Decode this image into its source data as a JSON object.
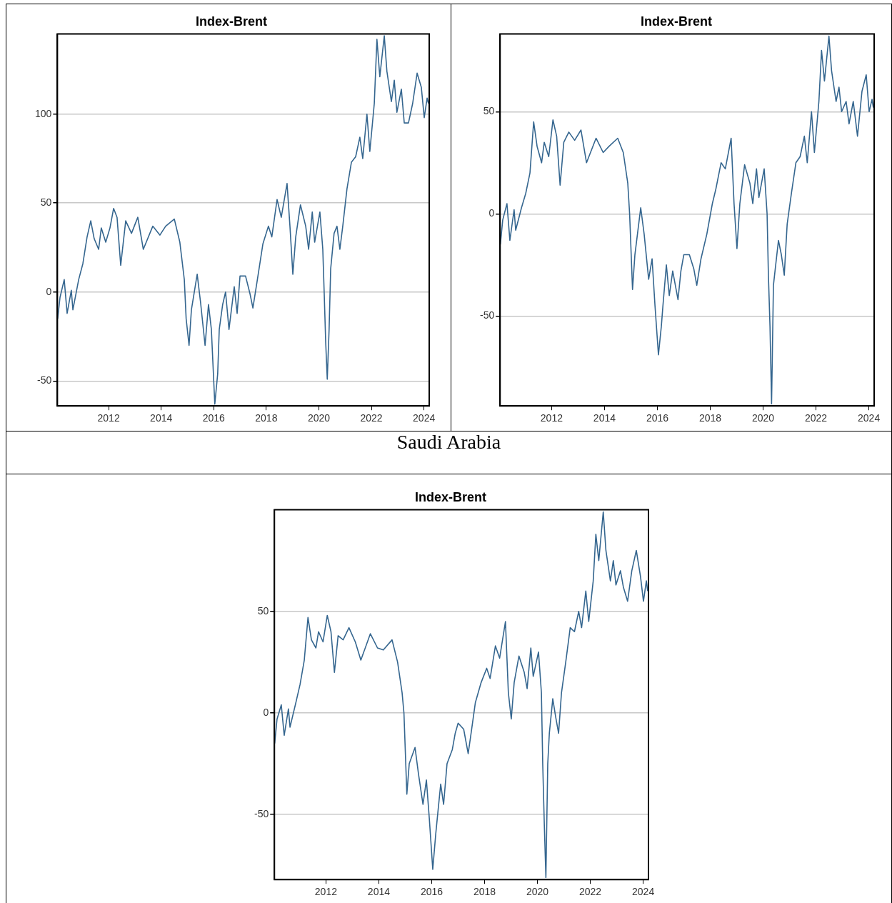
{
  "chart_data": [
    {
      "type": "line",
      "title": "Index-Brent",
      "grid": "y",
      "marker": "none",
      "legend": false,
      "xlim": [
        2010.05,
        2024.2
      ],
      "xticks": [
        2012,
        2014,
        2016,
        2018,
        2020,
        2022,
        2024
      ],
      "ylim": [
        -64,
        145
      ],
      "yticks": [
        -50,
        0,
        50,
        100
      ],
      "x": [
        2010.06,
        2010.15,
        2010.31,
        2010.42,
        2010.58,
        2010.64,
        2010.86,
        2011.02,
        2011.18,
        2011.32,
        2011.45,
        2011.62,
        2011.72,
        2011.89,
        2012.05,
        2012.19,
        2012.32,
        2012.46,
        2012.65,
        2012.87,
        2013.11,
        2013.32,
        2013.68,
        2013.95,
        2014.17,
        2014.5,
        2014.71,
        2014.88,
        2014.95,
        2015.06,
        2015.15,
        2015.37,
        2015.5,
        2015.67,
        2015.8,
        2015.91,
        2016.04,
        2016.15,
        2016.21,
        2016.34,
        2016.45,
        2016.58,
        2016.78,
        2016.89,
        2017.0,
        2017.21,
        2017.38,
        2017.49,
        2017.65,
        2017.87,
        2018.08,
        2018.21,
        2018.41,
        2018.57,
        2018.79,
        2018.9,
        2019.01,
        2019.12,
        2019.3,
        2019.5,
        2019.61,
        2019.75,
        2019.84,
        2020.04,
        2020.15,
        2020.2,
        2020.26,
        2020.32,
        2020.39,
        2020.45,
        2020.58,
        2020.69,
        2020.8,
        2020.91,
        2021.07,
        2021.24,
        2021.4,
        2021.56,
        2021.67,
        2021.83,
        2021.94,
        2022.11,
        2022.21,
        2022.32,
        2022.49,
        2022.59,
        2022.76,
        2022.87,
        2022.97,
        2023.14,
        2023.25,
        2023.41,
        2023.57,
        2023.74,
        2023.9,
        2024.01,
        2024.12,
        2024.17
      ],
      "series": [
        {
          "color": "#35668f",
          "values": [
            -15,
            -3,
            7,
            -12,
            1,
            -10,
            7,
            16,
            31,
            40,
            30,
            24,
            36,
            28,
            36,
            47,
            42,
            15,
            40,
            33,
            42,
            24,
            37,
            32,
            37,
            41,
            28,
            7,
            -15,
            -30,
            -10,
            10,
            -6,
            -30,
            -7,
            -21,
            -63,
            -46,
            -21,
            -7,
            0,
            -21,
            3,
            -12,
            9,
            9,
            -1,
            -9,
            6,
            27,
            37,
            31,
            52,
            42,
            61,
            37,
            10,
            31,
            49,
            37,
            24,
            45,
            28,
            45,
            24,
            1,
            -28,
            -49,
            -21,
            13,
            33,
            37,
            24,
            37,
            58,
            73,
            76,
            87,
            75,
            100,
            79,
            106,
            142,
            121,
            144,
            124,
            107,
            119,
            101,
            114,
            95,
            95,
            106,
            123,
            115,
            98,
            109,
            106
          ]
        }
      ]
    },
    {
      "type": "line",
      "title": "Index-Brent",
      "grid": "y",
      "marker": "none",
      "legend": false,
      "xlim": [
        2010.05,
        2024.2
      ],
      "xticks": [
        2012,
        2014,
        2016,
        2018,
        2020,
        2022,
        2024
      ],
      "ylim": [
        -94,
        88
      ],
      "yticks": [
        -50,
        0,
        50
      ],
      "x": [
        2010.06,
        2010.15,
        2010.31,
        2010.42,
        2010.58,
        2010.64,
        2010.86,
        2011.02,
        2011.18,
        2011.32,
        2011.45,
        2011.62,
        2011.72,
        2011.89,
        2012.05,
        2012.19,
        2012.32,
        2012.46,
        2012.65,
        2012.87,
        2013.11,
        2013.32,
        2013.68,
        2013.95,
        2014.17,
        2014.5,
        2014.71,
        2014.88,
        2014.95,
        2015.06,
        2015.15,
        2015.37,
        2015.5,
        2015.67,
        2015.8,
        2015.91,
        2016.04,
        2016.15,
        2016.21,
        2016.34,
        2016.45,
        2016.58,
        2016.78,
        2016.89,
        2017.0,
        2017.21,
        2017.38,
        2017.49,
        2017.65,
        2017.87,
        2018.08,
        2018.21,
        2018.41,
        2018.57,
        2018.79,
        2018.9,
        2019.01,
        2019.12,
        2019.3,
        2019.5,
        2019.61,
        2019.75,
        2019.84,
        2020.04,
        2020.15,
        2020.2,
        2020.26,
        2020.32,
        2020.39,
        2020.45,
        2020.58,
        2020.69,
        2020.8,
        2020.91,
        2021.07,
        2021.24,
        2021.4,
        2021.56,
        2021.67,
        2021.83,
        2021.94,
        2022.11,
        2022.21,
        2022.32,
        2022.49,
        2022.59,
        2022.76,
        2022.87,
        2022.97,
        2023.14,
        2023.25,
        2023.41,
        2023.57,
        2023.74,
        2023.9,
        2024.01,
        2024.12,
        2024.17
      ],
      "series": [
        {
          "color": "#35668f",
          "values": [
            -15,
            -3,
            5,
            -13,
            2,
            -8,
            3,
            10,
            20,
            45,
            33,
            25,
            35,
            28,
            46,
            38,
            14,
            35,
            40,
            36,
            41,
            25,
            37,
            30,
            33,
            37,
            30,
            15,
            0,
            -37,
            -20,
            3,
            -10,
            -32,
            -22,
            -45,
            -69,
            -55,
            -45,
            -25,
            -40,
            -28,
            -42,
            -28,
            -20,
            -20,
            -27,
            -35,
            -22,
            -10,
            5,
            12,
            25,
            22,
            37,
            5,
            -17,
            5,
            24,
            15,
            5,
            22,
            8,
            22,
            0,
            -30,
            -55,
            -93,
            -35,
            -28,
            -13,
            -20,
            -30,
            -5,
            10,
            25,
            28,
            38,
            25,
            50,
            30,
            55,
            80,
            65,
            87,
            70,
            55,
            62,
            50,
            55,
            44,
            55,
            38,
            60,
            68,
            50,
            56,
            52
          ]
        }
      ]
    },
    {
      "type": "line",
      "title": "Index-Brent",
      "annotations": [
        "Saudi Arabia"
      ],
      "grid": "y",
      "marker": "none",
      "legend": false,
      "xlim": [
        2010.05,
        2024.2
      ],
      "xticks": [
        2012,
        2014,
        2016,
        2018,
        2020,
        2022,
        2024
      ],
      "ylim": [
        -82,
        100
      ],
      "yticks": [
        -50,
        0,
        50
      ],
      "x": [
        2010.06,
        2010.15,
        2010.31,
        2010.42,
        2010.58,
        2010.64,
        2010.86,
        2011.02,
        2011.18,
        2011.32,
        2011.45,
        2011.62,
        2011.72,
        2011.89,
        2012.05,
        2012.19,
        2012.32,
        2012.46,
        2012.65,
        2012.87,
        2013.11,
        2013.32,
        2013.68,
        2013.95,
        2014.17,
        2014.5,
        2014.71,
        2014.88,
        2014.95,
        2015.06,
        2015.15,
        2015.37,
        2015.5,
        2015.67,
        2015.8,
        2015.91,
        2016.04,
        2016.15,
        2016.21,
        2016.34,
        2016.45,
        2016.58,
        2016.78,
        2016.89,
        2017.0,
        2017.21,
        2017.38,
        2017.49,
        2017.65,
        2017.87,
        2018.08,
        2018.21,
        2018.41,
        2018.57,
        2018.79,
        2018.9,
        2019.01,
        2019.12,
        2019.3,
        2019.5,
        2019.61,
        2019.75,
        2019.84,
        2020.04,
        2020.15,
        2020.2,
        2020.26,
        2020.32,
        2020.39,
        2020.45,
        2020.58,
        2020.69,
        2020.8,
        2020.91,
        2021.07,
        2021.24,
        2021.4,
        2021.56,
        2021.67,
        2021.83,
        2021.94,
        2022.11,
        2022.21,
        2022.32,
        2022.49,
        2022.59,
        2022.76,
        2022.87,
        2022.97,
        2023.14,
        2023.25,
        2023.41,
        2023.57,
        2023.74,
        2023.9,
        2024.01,
        2024.12,
        2024.17
      ],
      "series": [
        {
          "color": "#35668f",
          "values": [
            -15,
            -3,
            4,
            -11,
            2,
            -7,
            5,
            14,
            26,
            47,
            36,
            32,
            40,
            35,
            48,
            40,
            20,
            38,
            36,
            42,
            35,
            26,
            39,
            32,
            31,
            36,
            25,
            10,
            0,
            -40,
            -25,
            -17,
            -30,
            -45,
            -33,
            -52,
            -77,
            -60,
            -52,
            -35,
            -45,
            -25,
            -18,
            -10,
            -5,
            -8,
            -20,
            -10,
            5,
            15,
            22,
            17,
            33,
            27,
            45,
            10,
            -3,
            15,
            28,
            20,
            12,
            32,
            18,
            30,
            10,
            -25,
            -55,
            -81,
            -25,
            -10,
            7,
            -2,
            -10,
            10,
            25,
            42,
            40,
            50,
            42,
            60,
            45,
            65,
            88,
            75,
            99,
            80,
            65,
            75,
            63,
            70,
            62,
            55,
            70,
            80,
            67,
            55,
            65,
            60
          ]
        }
      ]
    }
  ]
}
